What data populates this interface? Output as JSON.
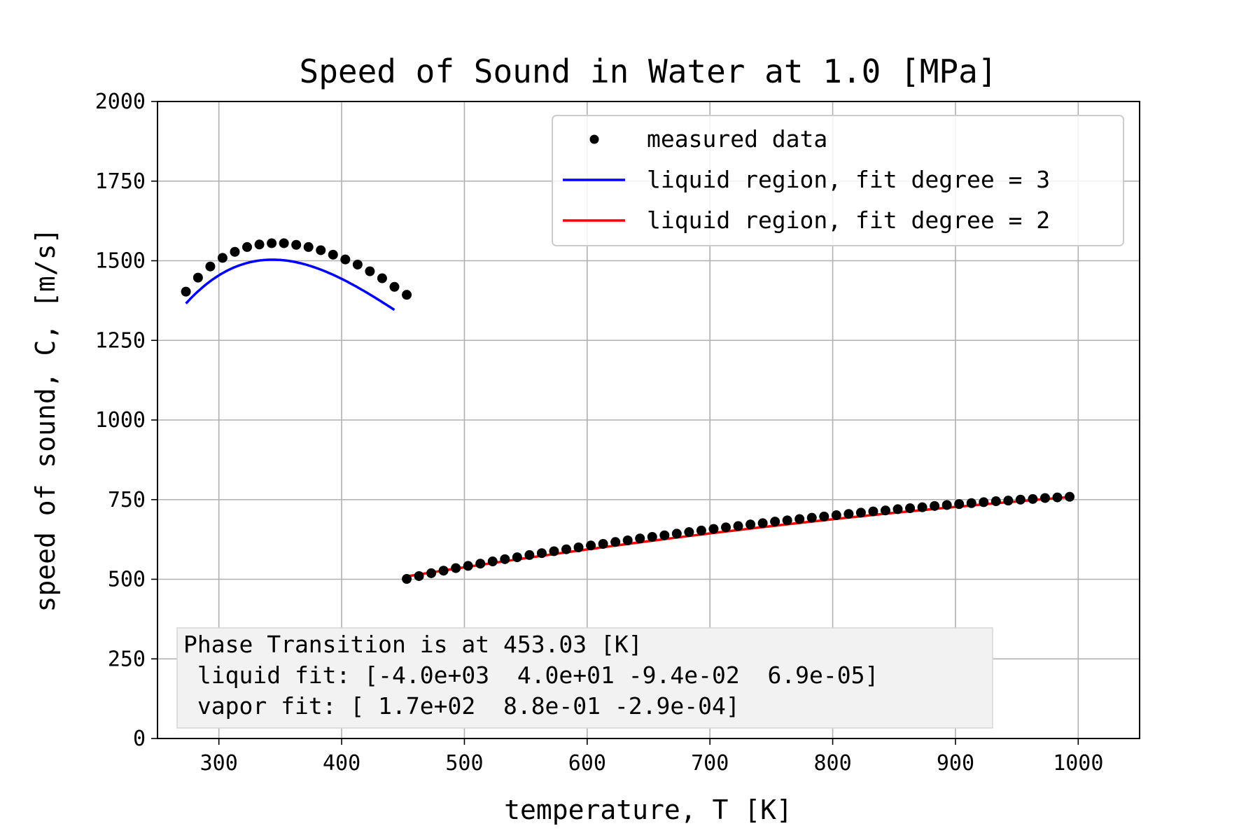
{
  "chart_data": {
    "type": "scatter",
    "title": "Speed of Sound in Water at 1.0 [MPa]",
    "xlabel": "temperature, T [K]",
    "ylabel": "speed of sound, C, [m/s]",
    "xlim": [
      250,
      1050
    ],
    "ylim": [
      0,
      2000
    ],
    "xticks": [
      300,
      400,
      500,
      600,
      700,
      800,
      900,
      1000
    ],
    "yticks": [
      0,
      250,
      500,
      750,
      1000,
      1250,
      1500,
      1750,
      2000
    ],
    "grid": true,
    "legend_position": "top-right",
    "legend": [
      {
        "label": "measured data",
        "marker": "dot",
        "color": "#000000"
      },
      {
        "label": "liquid region, fit degree = 3",
        "marker": "line",
        "color": "#0000ff"
      },
      {
        "label": "liquid region, fit degree = 2",
        "marker": "line",
        "color": "#ff0000"
      }
    ],
    "measured_data": [
      [
        273.15,
        1403
      ],
      [
        283,
        1447
      ],
      [
        293,
        1482
      ],
      [
        303,
        1509
      ],
      [
        313,
        1528
      ],
      [
        323,
        1543
      ],
      [
        333,
        1551
      ],
      [
        343,
        1555
      ],
      [
        353,
        1555
      ],
      [
        363,
        1550
      ],
      [
        373,
        1543
      ],
      [
        383,
        1533
      ],
      [
        393,
        1519
      ],
      [
        403,
        1504
      ],
      [
        413,
        1488
      ],
      [
        423,
        1467
      ],
      [
        433,
        1445
      ],
      [
        443,
        1418
      ],
      [
        453.03,
        1393
      ],
      [
        453.03,
        501
      ],
      [
        463,
        510
      ],
      [
        473,
        519
      ],
      [
        483,
        527
      ],
      [
        493,
        535
      ],
      [
        503,
        542
      ],
      [
        513,
        549
      ],
      [
        523,
        556
      ],
      [
        533,
        563
      ],
      [
        543,
        569
      ],
      [
        553,
        576
      ],
      [
        563,
        582
      ],
      [
        573,
        588
      ],
      [
        583,
        594
      ],
      [
        593,
        600
      ],
      [
        603,
        606
      ],
      [
        613,
        611
      ],
      [
        623,
        617
      ],
      [
        633,
        622
      ],
      [
        643,
        628
      ],
      [
        653,
        633
      ],
      [
        663,
        638
      ],
      [
        673,
        643
      ],
      [
        683,
        648
      ],
      [
        693,
        653
      ],
      [
        703,
        658
      ],
      [
        713,
        663
      ],
      [
        723,
        667
      ],
      [
        733,
        672
      ],
      [
        743,
        676
      ],
      [
        753,
        681
      ],
      [
        763,
        685
      ],
      [
        773,
        689
      ],
      [
        783,
        693
      ],
      [
        793,
        697
      ],
      [
        803,
        701
      ],
      [
        813,
        705
      ],
      [
        823,
        709
      ],
      [
        833,
        713
      ],
      [
        843,
        716
      ],
      [
        853,
        720
      ],
      [
        863,
        723
      ],
      [
        873,
        726
      ],
      [
        883,
        730
      ],
      [
        893,
        733
      ],
      [
        903,
        736
      ],
      [
        913,
        739
      ],
      [
        923,
        742
      ],
      [
        933,
        745
      ],
      [
        943,
        747
      ],
      [
        953,
        750
      ],
      [
        963,
        752
      ],
      [
        973,
        755
      ],
      [
        983,
        757
      ],
      [
        993,
        759
      ]
    ],
    "fits": [
      {
        "name": "liquid region, fit degree = 3",
        "color": "#0000ff",
        "x_range": [
          273.15,
          443
        ],
        "coefficients": [
          -4004.8,
          40.236,
          -0.09424,
          6.925e-05
        ]
      },
      {
        "name": "liquid region, fit degree = 2",
        "color": "#ff0000",
        "x_range": [
          453.03,
          993
        ],
        "coefficients": [
          170,
          0.88,
          -0.00029
        ]
      }
    ],
    "annotation": [
      "Phase Transition is at 453.03 [K]",
      " liquid fit: [-4.0e+03  4.0e+01 -9.4e-02  6.9e-05]",
      " vapor fit: [ 1.7e+02  8.8e-01 -2.9e-04]"
    ]
  }
}
